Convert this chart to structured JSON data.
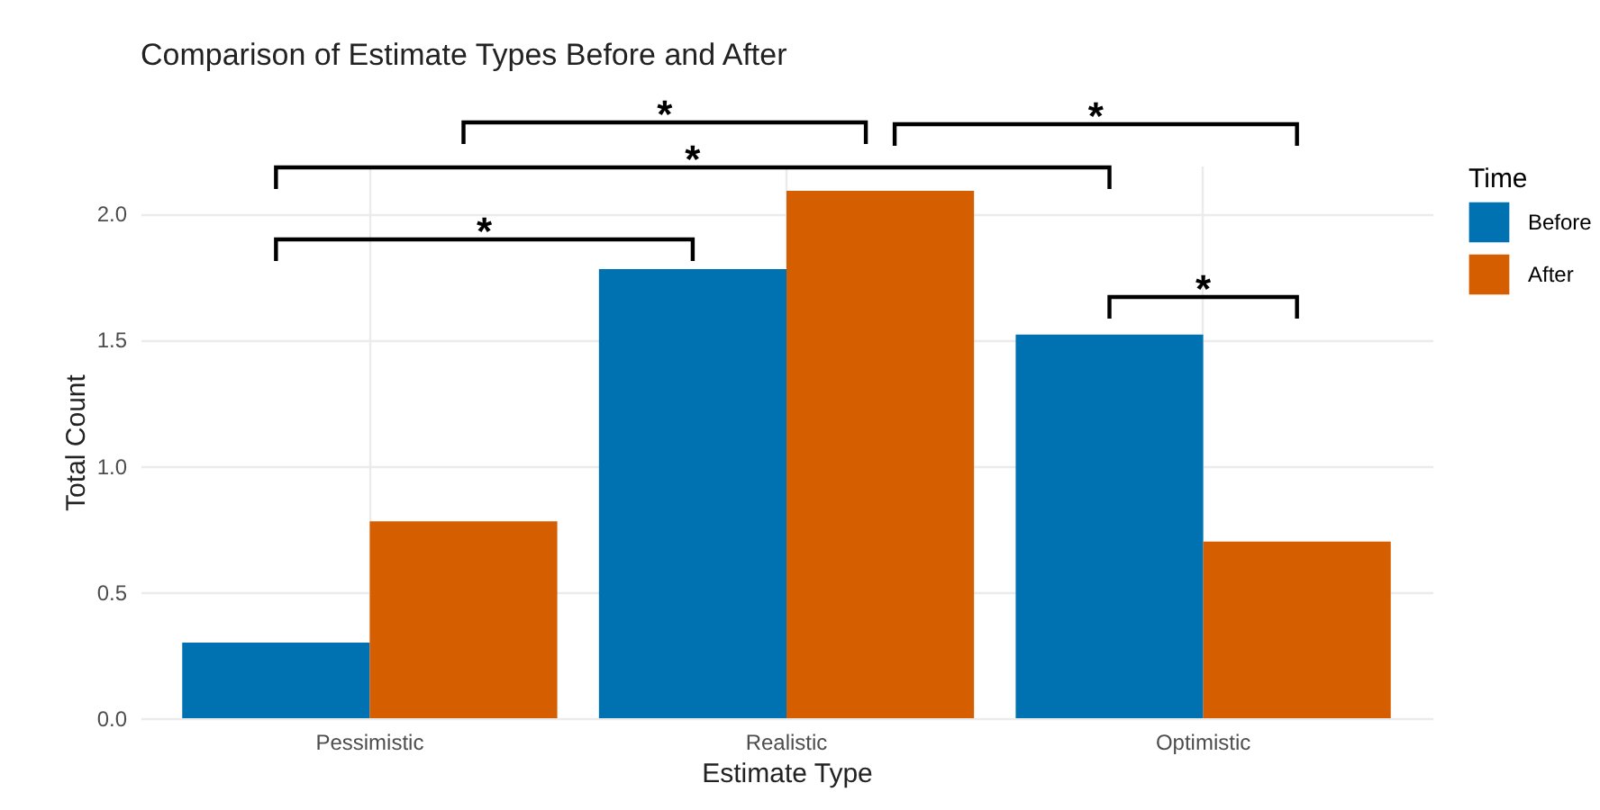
{
  "chart_data": {
    "type": "bar",
    "title": "Comparison of Estimate Types Before and After",
    "xlabel": "Estimate Type",
    "ylabel": "Total Count",
    "legend_title": "Time",
    "categories": [
      "Pessimistic",
      "Realistic",
      "Optimistic"
    ],
    "series": [
      {
        "name": "Before",
        "color": "#0072b2",
        "values": [
          0.3,
          1.78,
          1.52
        ]
      },
      {
        "name": "After",
        "color": "#d55e00",
        "values": [
          0.78,
          2.09,
          0.7
        ]
      }
    ],
    "ylim": [
      0,
      2.19
    ],
    "yticks": [
      {
        "value": 0,
        "label": "0.0"
      },
      {
        "value": 0.5,
        "label": "0.5"
      },
      {
        "value": 1,
        "label": "1.0"
      },
      {
        "value": 1.5,
        "label": "1.5"
      },
      {
        "value": 2,
        "label": "2.0"
      }
    ],
    "grid": true,
    "legend": "right",
    "annotations": [
      "*",
      "*",
      "*",
      "*",
      "*"
    ]
  }
}
